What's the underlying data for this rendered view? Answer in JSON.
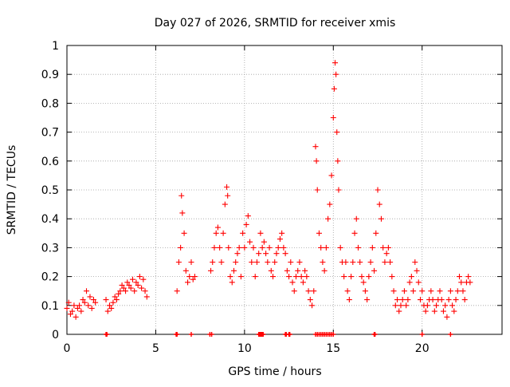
{
  "chart_data": {
    "type": "scatter",
    "title": "Day 027 of 2026, SRMTID for receiver xmis",
    "xlabel": "GPS time / hours",
    "ylabel": "SRMTID / TECUs",
    "xlim": [
      0,
      24.5
    ],
    "ylim": [
      0,
      1
    ],
    "xticks": [
      0,
      5,
      10,
      15,
      20
    ],
    "xtick_labels": [
      "0",
      "5",
      "10",
      "15",
      "20"
    ],
    "yticks": [
      0,
      0.1,
      0.2,
      0.3,
      0.4,
      0.5,
      0.6,
      0.7,
      0.8,
      0.9,
      1
    ],
    "ytick_labels": [
      "0",
      "0.1",
      "0.2",
      "0.3",
      "0.4",
      "0.5",
      "0.6",
      "0.7",
      "0.8",
      "0.9",
      "1"
    ],
    "grid": true,
    "marker": "+",
    "series": [
      {
        "name": "SRMTID",
        "color": "#ff0000",
        "x": [
          0.0,
          0.1,
          0.2,
          0.3,
          0.4,
          0.5,
          0.6,
          0.7,
          0.8,
          0.9,
          1.0,
          1.1,
          1.2,
          1.3,
          1.4,
          1.5,
          1.6,
          2.2,
          2.3,
          2.4,
          2.5,
          2.6,
          2.7,
          2.8,
          2.9,
          3.0,
          3.1,
          3.2,
          3.3,
          3.4,
          3.5,
          3.6,
          3.7,
          3.8,
          3.9,
          4.0,
          4.1,
          4.2,
          4.3,
          4.4,
          4.5,
          6.2,
          6.3,
          6.4,
          6.45,
          6.5,
          6.6,
          6.7,
          6.8,
          6.9,
          7.0,
          7.1,
          7.2,
          8.1,
          8.2,
          8.3,
          8.4,
          8.5,
          8.6,
          8.7,
          8.8,
          8.9,
          9.0,
          9.05,
          9.1,
          9.2,
          9.3,
          9.4,
          9.5,
          9.6,
          9.7,
          9.8,
          9.9,
          10.0,
          10.1,
          10.2,
          10.3,
          10.4,
          10.5,
          10.6,
          10.7,
          10.8,
          10.9,
          11.0,
          11.1,
          11.2,
          11.3,
          11.4,
          11.5,
          11.6,
          11.7,
          11.8,
          11.9,
          12.0,
          12.1,
          12.2,
          12.3,
          12.4,
          12.5,
          12.6,
          12.7,
          12.8,
          12.9,
          13.0,
          13.1,
          13.2,
          13.3,
          13.4,
          13.5,
          13.6,
          13.7,
          13.8,
          13.9,
          14.0,
          14.05,
          14.1,
          14.2,
          14.3,
          14.4,
          14.5,
          14.6,
          14.7,
          14.8,
          14.9,
          15.0,
          15.05,
          15.1,
          15.15,
          15.2,
          15.25,
          15.3,
          15.4,
          15.5,
          15.6,
          15.7,
          15.8,
          15.9,
          16.0,
          16.1,
          16.2,
          16.3,
          16.4,
          16.5,
          16.6,
          16.7,
          16.8,
          16.9,
          17.0,
          17.1,
          17.2,
          17.3,
          17.4,
          17.5,
          17.6,
          17.7,
          17.8,
          17.9,
          18.0,
          18.1,
          18.2,
          18.3,
          18.4,
          18.5,
          18.6,
          18.7,
          18.8,
          18.9,
          19.0,
          19.1,
          19.2,
          19.3,
          19.4,
          19.5,
          19.6,
          19.7,
          19.8,
          19.9,
          20.0,
          20.1,
          20.2,
          20.3,
          20.4,
          20.5,
          20.6,
          20.7,
          20.8,
          20.9,
          21.0,
          21.1,
          21.2,
          21.3,
          21.4,
          21.5,
          21.6,
          21.7,
          21.8,
          21.9,
          22.0,
          22.1,
          22.2,
          22.3,
          22.4,
          22.5,
          22.6,
          22.7
        ],
        "y": [
          0.09,
          0.11,
          0.07,
          0.08,
          0.1,
          0.06,
          0.09,
          0.1,
          0.08,
          0.12,
          0.11,
          0.15,
          0.1,
          0.13,
          0.09,
          0.12,
          0.11,
          0.12,
          0.08,
          0.1,
          0.09,
          0.11,
          0.13,
          0.12,
          0.14,
          0.15,
          0.17,
          0.16,
          0.15,
          0.18,
          0.17,
          0.16,
          0.19,
          0.15,
          0.18,
          0.17,
          0.2,
          0.16,
          0.19,
          0.15,
          0.13,
          0.15,
          0.25,
          0.3,
          0.48,
          0.42,
          0.35,
          0.22,
          0.18,
          0.2,
          0.25,
          0.19,
          0.2,
          0.22,
          0.25,
          0.3,
          0.35,
          0.37,
          0.3,
          0.25,
          0.35,
          0.45,
          0.51,
          0.48,
          0.3,
          0.2,
          0.18,
          0.22,
          0.25,
          0.28,
          0.3,
          0.2,
          0.35,
          0.3,
          0.38,
          0.41,
          0.32,
          0.25,
          0.3,
          0.2,
          0.25,
          0.28,
          0.35,
          0.3,
          0.32,
          0.28,
          0.25,
          0.3,
          0.22,
          0.2,
          0.25,
          0.28,
          0.3,
          0.33,
          0.35,
          0.3,
          0.28,
          0.22,
          0.2,
          0.25,
          0.18,
          0.15,
          0.2,
          0.22,
          0.25,
          0.2,
          0.18,
          0.22,
          0.2,
          0.15,
          0.12,
          0.1,
          0.15,
          0.65,
          0.6,
          0.5,
          0.35,
          0.3,
          0.25,
          0.22,
          0.3,
          0.4,
          0.45,
          0.55,
          0.75,
          0.85,
          0.94,
          0.9,
          0.7,
          0.6,
          0.5,
          0.3,
          0.25,
          0.2,
          0.25,
          0.15,
          0.12,
          0.2,
          0.25,
          0.35,
          0.4,
          0.3,
          0.25,
          0.2,
          0.18,
          0.15,
          0.12,
          0.2,
          0.25,
          0.3,
          0.22,
          0.35,
          0.5,
          0.45,
          0.4,
          0.3,
          0.25,
          0.28,
          0.3,
          0.25,
          0.2,
          0.15,
          0.1,
          0.12,
          0.08,
          0.1,
          0.12,
          0.15,
          0.1,
          0.12,
          0.18,
          0.2,
          0.15,
          0.25,
          0.22,
          0.18,
          0.12,
          0.15,
          0.1,
          0.08,
          0.1,
          0.12,
          0.15,
          0.12,
          0.08,
          0.1,
          0.12,
          0.15,
          0.12,
          0.08,
          0.1,
          0.06,
          0.12,
          0.15,
          0.1,
          0.08,
          0.12,
          0.15,
          0.2,
          0.18,
          0.15,
          0.12,
          0.18,
          0.2,
          0.18
        ],
        "zero_x": [
          2.2,
          2.25,
          6.15,
          6.2,
          7.0,
          8.05,
          8.15,
          10.8,
          10.85,
          10.9,
          10.95,
          11.0,
          11.05,
          12.3,
          12.35,
          12.5,
          12.55,
          14.0,
          14.1,
          14.2,
          14.3,
          14.4,
          14.5,
          14.6,
          14.7,
          14.8,
          14.9,
          15.0,
          17.3,
          17.35,
          20.0,
          21.6
        ]
      }
    ]
  }
}
